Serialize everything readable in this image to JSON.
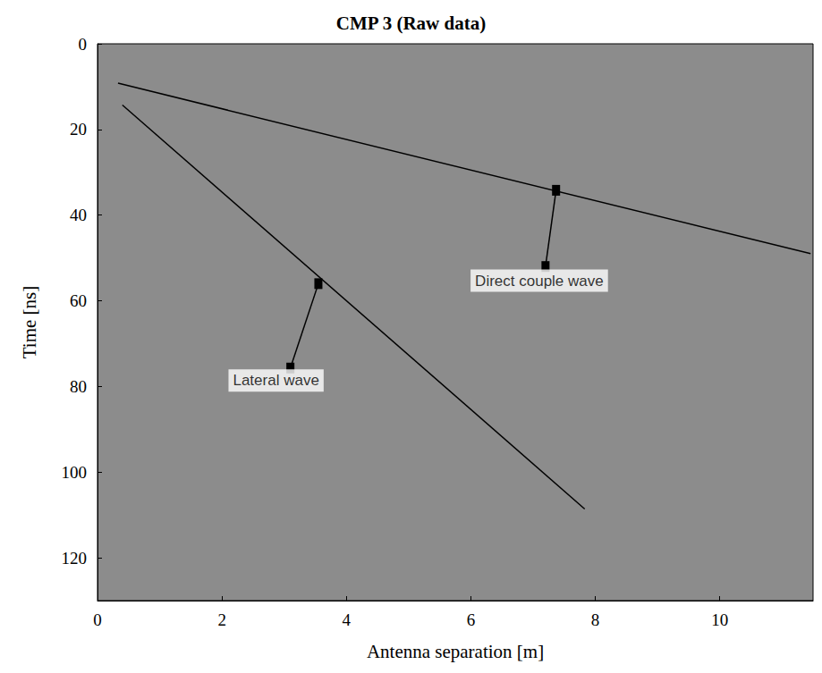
{
  "chart_data": {
    "type": "line",
    "title": "CMP 3 (Raw data)",
    "x_label": "Antenna separation [m]",
    "y_label": "Time [ns]",
    "xlim": [
      0,
      11.5
    ],
    "xticks": [
      0,
      2,
      4,
      6,
      8,
      10
    ],
    "ylim": [
      0,
      130
    ],
    "yticks": [
      0,
      20,
      40,
      60,
      80,
      100,
      120
    ],
    "grid": false,
    "series": [
      {
        "x": [
          0.33,
          11.46
        ],
        "values": [
          9.2,
          49
        ],
        "color": "#000000"
      },
      {
        "x": [
          0.4,
          7.83
        ],
        "values": [
          14.3,
          108.6
        ],
        "color": "#000000"
      }
    ],
    "annotations": [
      {
        "text": "Direct couple wave",
        "x": 7.1,
        "y": 55.3,
        "arrow_from": [
          7.2,
          52
        ],
        "arrow_to": [
          7.37,
          34.2
        ]
      },
      {
        "text": "Lateral wave",
        "x": 2.87,
        "y": 78.6,
        "arrow_from": [
          3.1,
          75.7
        ],
        "arrow_to": [
          3.55,
          56
        ]
      }
    ]
  }
}
